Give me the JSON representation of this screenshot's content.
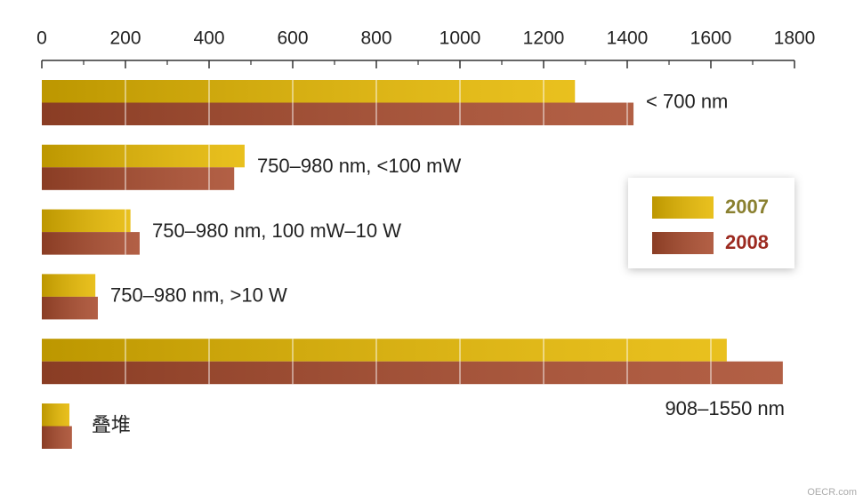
{
  "chart_data": {
    "type": "bar",
    "orientation": "horizontal",
    "categories": [
      "< 700 nm",
      "750–980 nm, <100 mW",
      "750–980 nm, 100 mW–10 W",
      "750–980 nm, >10 W",
      "908–1550 nm",
      "叠堆"
    ],
    "series": [
      {
        "name": "2007",
        "color": "#e6b800",
        "text_color": "#8a8030",
        "values": [
          1275,
          485,
          212,
          128,
          1638,
          66
        ]
      },
      {
        "name": "2008",
        "color": "#a84a2c",
        "text_color": "#9c2a20",
        "values": [
          1415,
          460,
          234,
          134,
          1772,
          72
        ]
      }
    ],
    "xlim": [
      0,
      1800
    ],
    "xticks": [
      0,
      200,
      400,
      600,
      800,
      1000,
      1200,
      1400,
      1600,
      1800
    ],
    "grid": true,
    "legend_position": "right",
    "watermark": "OECR.com"
  }
}
